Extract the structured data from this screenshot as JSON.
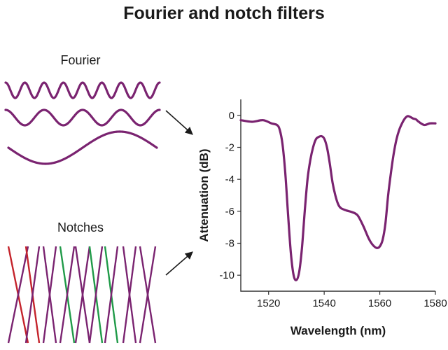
{
  "title": "Fourier and notch filters",
  "fourier_label": "Fourier",
  "notches_label": "Notches",
  "colors": {
    "curve": "#7a2370",
    "notch_purple": "#7a2370",
    "notch_red": "#c4232b",
    "notch_green": "#1f9a48",
    "arrow": "#1a1a1a"
  },
  "chart_data": {
    "type": "line",
    "xlabel": "Wavelength (nm)",
    "ylabel": "Attenuation (dB)",
    "xlim": [
      1510,
      1580
    ],
    "ylim": [
      -11,
      1
    ],
    "xticks": [
      "1520",
      "1540",
      "1560",
      "1580"
    ],
    "xtick_values": [
      1520,
      1540,
      1560,
      1580
    ],
    "yticks": [
      "0",
      "-2",
      "-4",
      "-6",
      "-8",
      "-10"
    ],
    "ytick_values": [
      0,
      -2,
      -4,
      -6,
      -8,
      -10
    ],
    "series": [
      {
        "x": [
          1510,
          1514,
          1518,
          1521,
          1523,
          1524,
          1525,
          1526,
          1527,
          1528,
          1529,
          1530,
          1531,
          1532,
          1533,
          1534,
          1535,
          1536,
          1537,
          1538,
          1539,
          1540,
          1541,
          1542,
          1543,
          1544,
          1545,
          1546,
          1548,
          1550,
          1552,
          1554,
          1555,
          1556,
          1557,
          1558,
          1559,
          1560,
          1561,
          1562,
          1563,
          1564,
          1565,
          1566,
          1567,
          1568,
          1569,
          1570,
          1571,
          1572,
          1573,
          1574,
          1576,
          1578,
          1580
        ],
        "y": [
          -0.3,
          -0.4,
          -0.3,
          -0.5,
          -0.6,
          -0.9,
          -1.8,
          -3.6,
          -6.2,
          -8.6,
          -10.0,
          -10.3,
          -9.8,
          -8.3,
          -6.0,
          -4.0,
          -2.8,
          -2.0,
          -1.5,
          -1.35,
          -1.3,
          -1.45,
          -2.0,
          -3.0,
          -4.2,
          -5.0,
          -5.55,
          -5.8,
          -5.95,
          -6.05,
          -6.25,
          -6.9,
          -7.3,
          -7.7,
          -8.0,
          -8.2,
          -8.3,
          -8.2,
          -7.8,
          -6.8,
          -5.0,
          -3.6,
          -2.4,
          -1.5,
          -0.9,
          -0.5,
          -0.2,
          -0.05,
          -0.1,
          -0.2,
          -0.25,
          -0.4,
          -0.6,
          -0.5,
          -0.5
        ]
      }
    ]
  }
}
